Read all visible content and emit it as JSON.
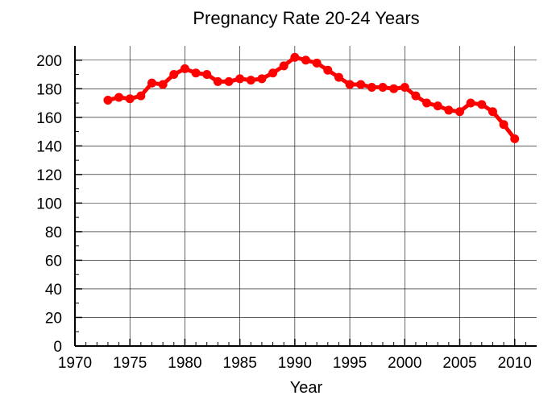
{
  "chart_data": {
    "type": "line",
    "title": "Pregnancy Rate 20-24 Years",
    "xlabel": "Year",
    "ylabel": "",
    "xlim": [
      1970,
      2012
    ],
    "ylim": [
      0,
      210
    ],
    "xticks": [
      1970,
      1975,
      1980,
      1985,
      1990,
      1995,
      2000,
      2005,
      2010
    ],
    "yticks": [
      0,
      20,
      40,
      60,
      80,
      100,
      120,
      140,
      160,
      180,
      200
    ],
    "grid": true,
    "legend": "none",
    "series": [
      {
        "color": "#ff0000",
        "x": [
          1973,
          1974,
          1975,
          1976,
          1977,
          1978,
          1979,
          1980,
          1981,
          1982,
          1983,
          1984,
          1985,
          1986,
          1987,
          1988,
          1989,
          1990,
          1991,
          1992,
          1993,
          1994,
          1995,
          1996,
          1997,
          1998,
          1999,
          2000,
          2001,
          2002,
          2003,
          2004,
          2005,
          2006,
          2007,
          2008,
          2009,
          2010
        ],
        "values": [
          172,
          174,
          173,
          175,
          184,
          183,
          190,
          194,
          191,
          190,
          185,
          185,
          187,
          186,
          187,
          191,
          196,
          202,
          200,
          198,
          193,
          188,
          183,
          183,
          181,
          181,
          180,
          181,
          175,
          170,
          168,
          165,
          164,
          170,
          169,
          164,
          155,
          145
        ]
      }
    ]
  }
}
